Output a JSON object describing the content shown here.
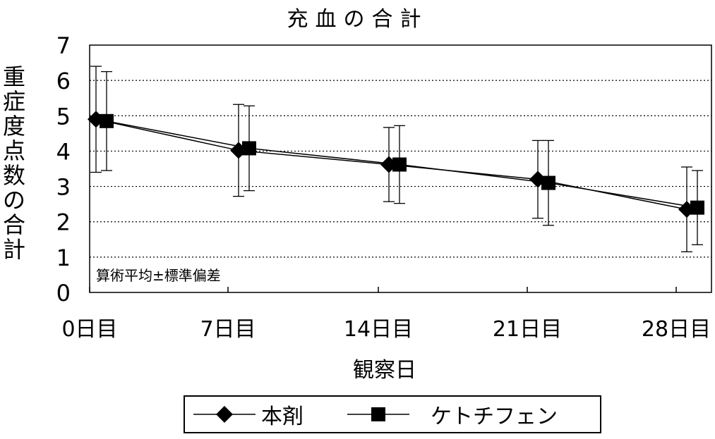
{
  "chart_data": {
    "type": "line",
    "title": "充血の合計",
    "xlabel": "観察日",
    "ylabel": "重症度点数の合計",
    "categories": [
      "0日目",
      "7日目",
      "14日目",
      "21日目",
      "28日目"
    ],
    "ylim": [
      0,
      7
    ],
    "yticks": [
      0,
      1,
      2,
      3,
      4,
      5,
      6,
      7
    ],
    "grid": "horizontal dotted",
    "annotation": "算術平均±標準偏差",
    "legend_position": "bottom",
    "series": [
      {
        "name": "本剤",
        "marker": "diamond",
        "values": [
          4.9,
          4.02,
          3.62,
          3.2,
          2.35
        ],
        "error": [
          1.5,
          1.3,
          1.05,
          1.1,
          1.2
        ]
      },
      {
        "name": "ケトチフェン",
        "marker": "square",
        "values": [
          4.85,
          4.08,
          3.62,
          3.1,
          2.4
        ],
        "error": [
          1.4,
          1.2,
          1.1,
          1.2,
          1.05
        ]
      }
    ]
  }
}
